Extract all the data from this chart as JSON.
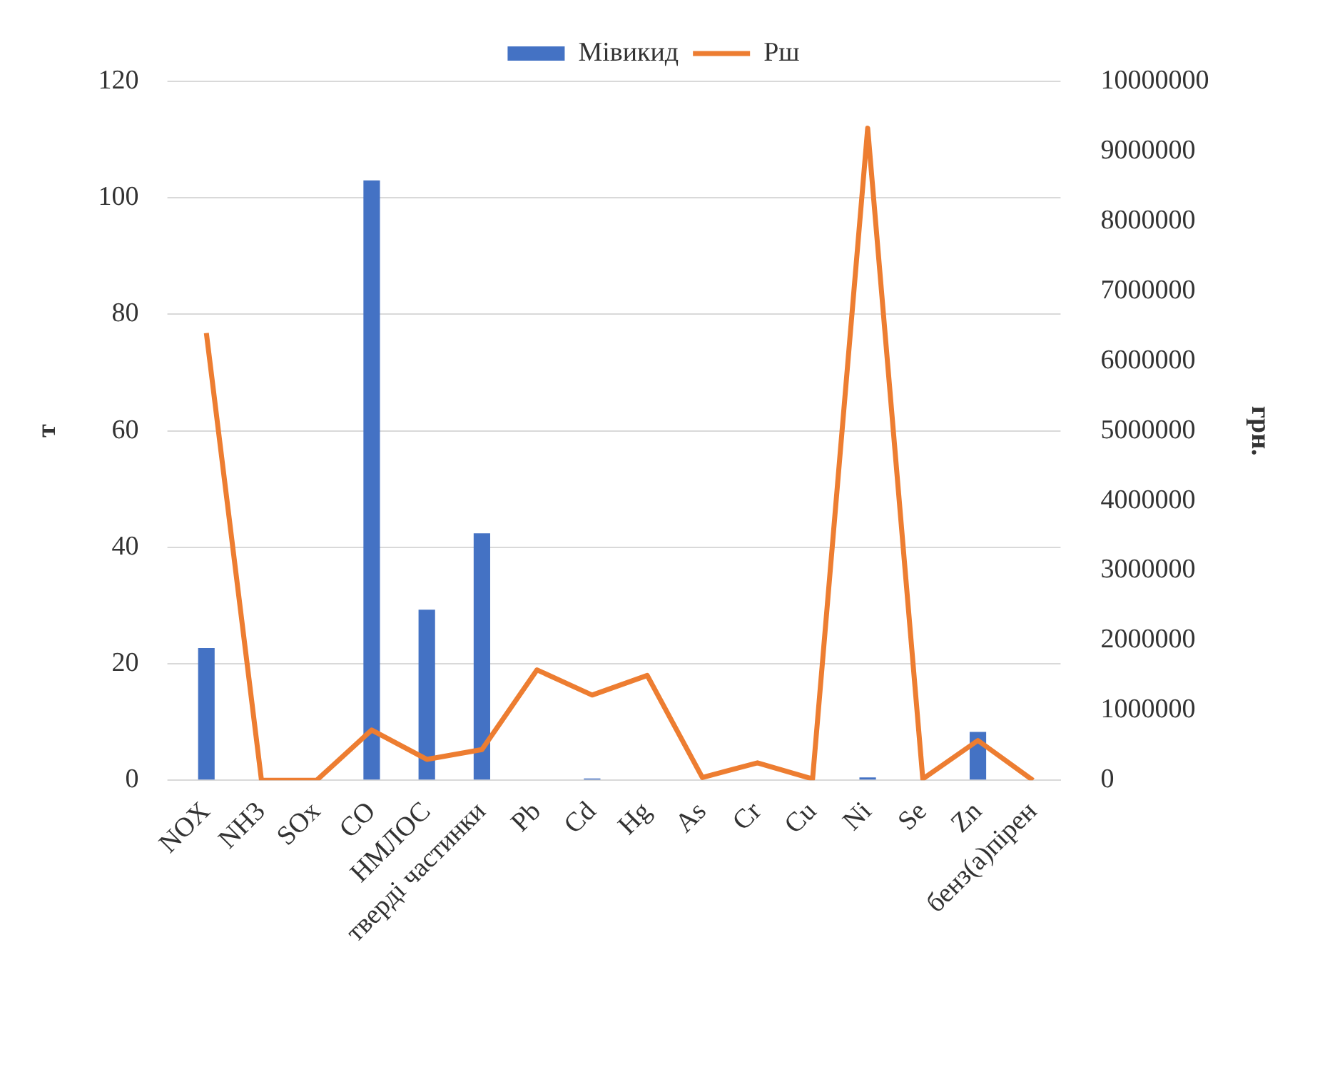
{
  "chart_data": {
    "type": "bar",
    "categories": [
      "NOX",
      "NH3",
      "SOx",
      "CO",
      "НМЛОС",
      "тверді частинки",
      "Pb",
      "Cd",
      "Hg",
      "As",
      "Cr",
      "Cu",
      "Ni",
      "Se",
      "Zn",
      "бенз(а)пірен"
    ],
    "series": [
      {
        "name": "Мівикид",
        "color": "#4472c4",
        "values": [
          22.7,
          0,
          0,
          103,
          29.3,
          42.4,
          0,
          0.3,
          0,
          0,
          0,
          0,
          0.5,
          0,
          8.3,
          0
        ]
      },
      {
        "name": "Рш",
        "type": "line",
        "axis": "y2",
        "color": "#ed7d31",
        "values": [
          6400000,
          0,
          0,
          720000,
          300000,
          440000,
          1580000,
          1220000,
          1500000,
          40000,
          250000,
          20000,
          9330000,
          20000,
          570000,
          0
        ]
      }
    ],
    "ylabel": "т",
    "y2label": "грн.",
    "ylim": [
      0,
      120
    ],
    "yticks": [
      0,
      20,
      40,
      60,
      80,
      100,
      120
    ],
    "y2lim": [
      0,
      10000000
    ],
    "y2ticks": [
      0,
      1000000,
      2000000,
      3000000,
      4000000,
      5000000,
      6000000,
      7000000,
      8000000,
      9000000,
      10000000
    ],
    "grid": "y",
    "legend": "top",
    "marker": "none"
  }
}
